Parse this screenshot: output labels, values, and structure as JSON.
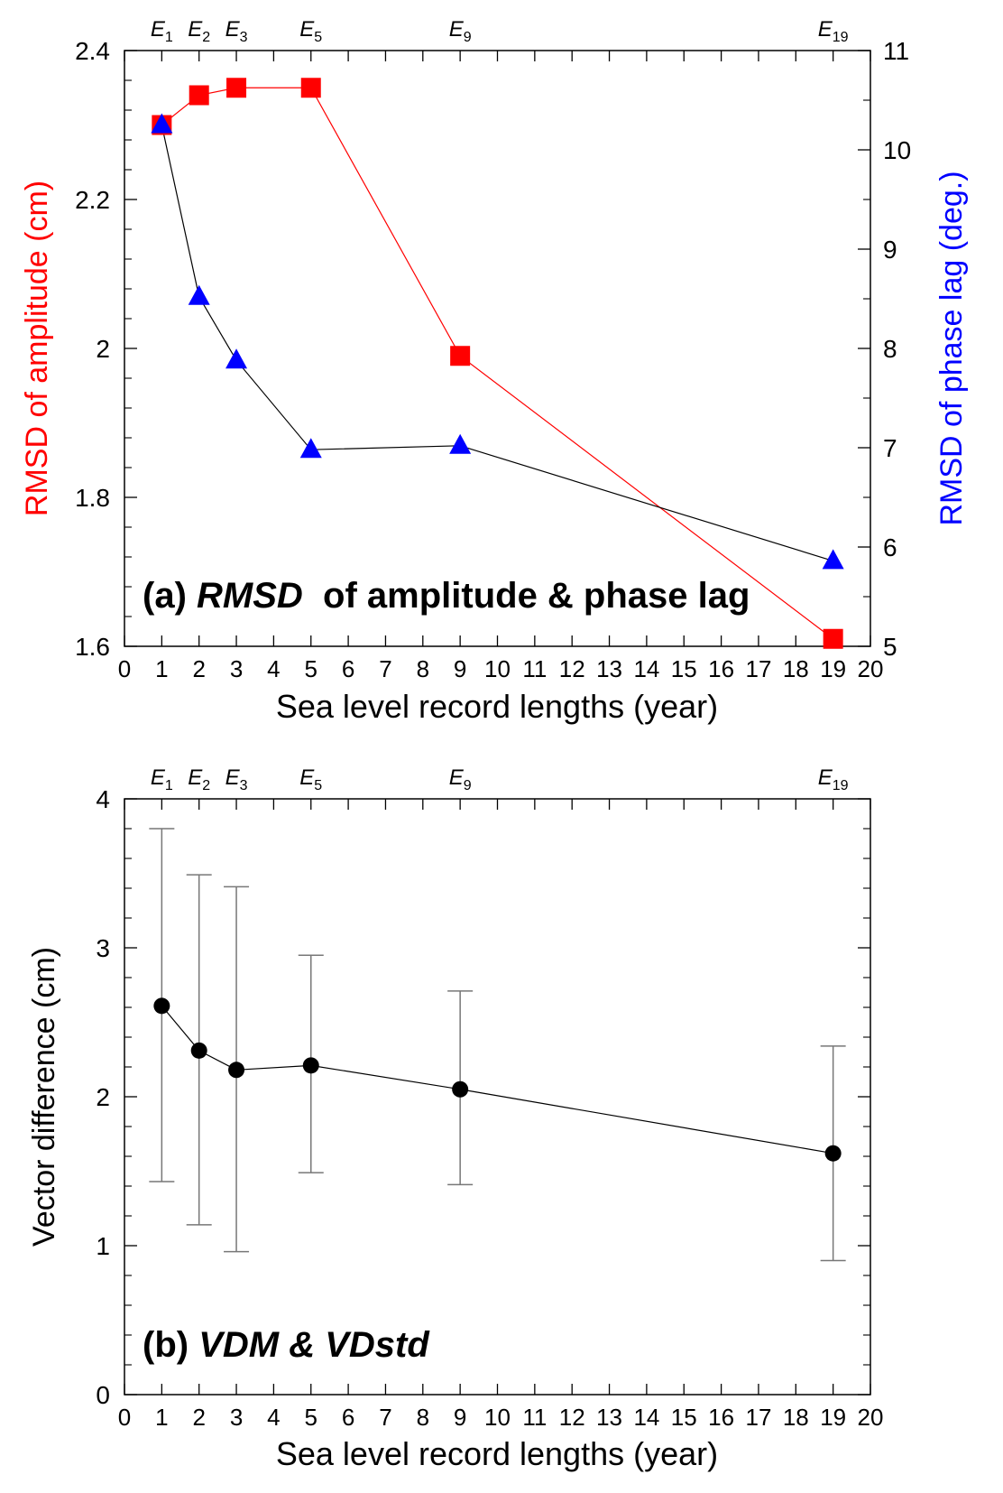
{
  "chart_data": [
    {
      "type": "line",
      "panel_label": "(a)",
      "title_italic": "RMSD",
      "title_rest": " of amplitude & phase lag",
      "xlabel": "Sea level record lengths (year)",
      "ylabel_left": "RMSD of amplitude (cm)",
      "ylabel_right": "RMSD of phase lag (deg.)",
      "xlim": [
        0,
        20
      ],
      "ylim_left": [
        1.6,
        2.4
      ],
      "ylim_right": [
        5,
        11
      ],
      "x_ticks": [
        "0",
        "1",
        "2",
        "3",
        "4",
        "5",
        "6",
        "7",
        "8",
        "9",
        "10",
        "11",
        "12",
        "13",
        "14",
        "15",
        "16",
        "17",
        "18",
        "19",
        "20"
      ],
      "y_ticks_left": [
        "1.6",
        "1.8",
        "2",
        "2.2",
        "2.4"
      ],
      "y_ticks_right": [
        "5",
        "6",
        "7",
        "8",
        "9",
        "10",
        "11"
      ],
      "top_labels": [
        {
          "x": 1,
          "base": "E",
          "sub": "1"
        },
        {
          "x": 2,
          "base": "E",
          "sub": "2"
        },
        {
          "x": 3,
          "base": "E",
          "sub": "3"
        },
        {
          "x": 5,
          "base": "E",
          "sub": "5"
        },
        {
          "x": 9,
          "base": "E",
          "sub": "9"
        },
        {
          "x": 19,
          "base": "E",
          "sub": "19"
        }
      ],
      "series": [
        {
          "name": "RMSD of amplitude",
          "axis": "left",
          "color": "#ff0000",
          "line_color": "#ff0000",
          "marker": "square",
          "x": [
            1,
            2,
            3,
            5,
            9,
            19
          ],
          "y": [
            2.3,
            2.34,
            2.35,
            2.35,
            1.99,
            1.61
          ]
        },
        {
          "name": "RMSD of phase lag",
          "axis": "right",
          "color": "#0000ff",
          "line_color": "#000000",
          "marker": "triangle",
          "x": [
            1,
            2,
            3,
            5,
            9,
            19
          ],
          "y": [
            10.25,
            8.52,
            7.88,
            6.98,
            7.02,
            5.86
          ]
        }
      ]
    },
    {
      "type": "line",
      "panel_label": "(b)",
      "title_italic": "VDM & VDstd",
      "title_rest": "",
      "xlabel": "Sea level record lengths (year)",
      "ylabel_left": "Vector difference (cm)",
      "xlim": [
        0,
        20
      ],
      "ylim_left": [
        0,
        4
      ],
      "x_ticks": [
        "0",
        "1",
        "2",
        "3",
        "4",
        "5",
        "6",
        "7",
        "8",
        "9",
        "10",
        "11",
        "12",
        "13",
        "14",
        "15",
        "16",
        "17",
        "18",
        "19",
        "20"
      ],
      "y_ticks_left": [
        "0",
        "1",
        "2",
        "3",
        "4"
      ],
      "top_labels": [
        {
          "x": 1,
          "base": "E",
          "sub": "1"
        },
        {
          "x": 2,
          "base": "E",
          "sub": "2"
        },
        {
          "x": 3,
          "base": "E",
          "sub": "3"
        },
        {
          "x": 5,
          "base": "E",
          "sub": "5"
        },
        {
          "x": 9,
          "base": "E",
          "sub": "9"
        },
        {
          "x": 19,
          "base": "E",
          "sub": "19"
        }
      ],
      "series": [
        {
          "name": "VDM",
          "axis": "left",
          "color": "#000000",
          "line_color": "#000000",
          "marker": "circle",
          "x": [
            1,
            2,
            3,
            5,
            9,
            19
          ],
          "y": [
            2.61,
            2.31,
            2.18,
            2.21,
            2.05,
            1.62
          ],
          "error_low": [
            1.43,
            1.14,
            0.96,
            1.49,
            1.41,
            0.9
          ],
          "error_high": [
            3.8,
            3.49,
            3.41,
            2.95,
            2.71,
            2.34
          ]
        }
      ]
    }
  ]
}
